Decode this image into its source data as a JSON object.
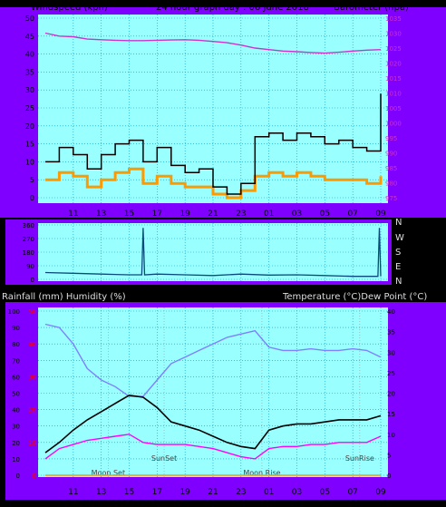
{
  "header": {
    "left": "Windspeed (kph)",
    "center": "24 hour graph day : 06 June 2018",
    "right": "Barometer (hpa)"
  },
  "mid_header": {
    "left": "Rainfall (mm)  Humidity (%)",
    "right": "Temperature (°C)Dew Point (°C)"
  },
  "compass": [
    "N",
    "W",
    "S",
    "E",
    "N"
  ],
  "events": {
    "moon_set": "Moon Set",
    "sunset": "SunSet",
    "moon_rise": "Moon Rise",
    "sunrise": "SunRise"
  },
  "colors": {
    "frame": "#7f00ff",
    "plot_bg": "#99ffff",
    "grid": "#0099cc",
    "wind_gust": "#000000",
    "wind_avg": "#ff9900",
    "barometer": "#cc33cc",
    "direction": "#0a4a7a",
    "humidity": "#8080ff",
    "temperature": "#000000",
    "dewpoint": "#ff00ff"
  },
  "chart_data": [
    {
      "type": "line",
      "name": "wind_barometer",
      "x_ticks": [
        "11",
        "13",
        "15",
        "17",
        "19",
        "21",
        "23",
        "01",
        "03",
        "05",
        "07",
        "09"
      ],
      "y_left_ticks": [
        "0",
        "5",
        "10",
        "15",
        "20",
        "25",
        "30",
        "35",
        "40",
        "45",
        "50"
      ],
      "ylim_left": [
        0,
        50
      ],
      "y_right_ticks": [
        "975",
        "980",
        "985",
        "990",
        "995",
        "1000",
        "1005",
        "1010",
        "1015",
        "1020",
        "1025",
        "1030",
        "1035"
      ],
      "ylim_right": [
        975,
        1035
      ],
      "x_hours": [
        9,
        10,
        11,
        12,
        13,
        14,
        15,
        16,
        17,
        18,
        19,
        20,
        21,
        22,
        23,
        24,
        25,
        26,
        27,
        28,
        29,
        30,
        31,
        32,
        33
      ],
      "series": [
        {
          "key": "gust",
          "axis": "left",
          "values": [
            10,
            14,
            12,
            8,
            12,
            15,
            16,
            10,
            14,
            9,
            7,
            8,
            3,
            1,
            4,
            17,
            18,
            16,
            18,
            17,
            15,
            16,
            14,
            13,
            29
          ]
        },
        {
          "key": "average",
          "axis": "left",
          "values": [
            5,
            7,
            6,
            3,
            5,
            7,
            8,
            4,
            6,
            4,
            3,
            3,
            1,
            0,
            2,
            6,
            7,
            6,
            7,
            6,
            5,
            5,
            5,
            4,
            6
          ]
        },
        {
          "key": "barometer",
          "axis": "right",
          "values": [
            1030,
            1029,
            1028.8,
            1028,
            1027.8,
            1027.6,
            1027.5,
            1027.5,
            1027.6,
            1027.7,
            1027.8,
            1027.6,
            1027.2,
            1026.8,
            1026,
            1025,
            1024.5,
            1024,
            1023.8,
            1023.5,
            1023.3,
            1023.6,
            1024,
            1024.3,
            1024.5
          ]
        }
      ]
    },
    {
      "type": "line",
      "name": "wind_direction",
      "y_ticks": [
        "0",
        "90",
        "180",
        "270",
        "360"
      ],
      "ylim": [
        0,
        360
      ],
      "x_hours": [
        9,
        11,
        13,
        15,
        15.9,
        16,
        16.1,
        17,
        19,
        21,
        23,
        25,
        27,
        29,
        31,
        32.8,
        32.9,
        33
      ],
      "values": [
        45,
        40,
        35,
        30,
        30,
        340,
        30,
        35,
        30,
        25,
        35,
        28,
        30,
        25,
        20,
        20,
        340,
        20
      ]
    },
    {
      "type": "line",
      "name": "rain_humidity_temperature",
      "x_ticks": [
        "11",
        "13",
        "15",
        "17",
        "19",
        "21",
        "23",
        "01",
        "03",
        "05",
        "07",
        "09"
      ],
      "y_left_ticks": [
        "0",
        "10",
        "20",
        "30",
        "40",
        "50",
        "60",
        "70",
        "80",
        "90",
        "100"
      ],
      "ylim_left": [
        0,
        100
      ],
      "y_rain_ticks": [
        "0",
        "10",
        "20",
        "30",
        "40",
        "50"
      ],
      "ylim_rain": [
        0,
        50
      ],
      "y_right_ticks": [
        "0",
        "5",
        "10",
        "15",
        "20",
        "25",
        "30",
        "35",
        "40"
      ],
      "ylim_right": [
        0,
        40
      ],
      "x_hours": [
        9,
        10,
        11,
        12,
        13,
        14,
        15,
        16,
        17,
        18,
        19,
        20,
        21,
        22,
        23,
        24,
        25,
        26,
        27,
        28,
        29,
        30,
        31,
        32,
        33
      ],
      "series": [
        {
          "key": "humidity",
          "axis": "left",
          "values": [
            92,
            90,
            80,
            65,
            58,
            54,
            48,
            48,
            58,
            68,
            72,
            76,
            80,
            84,
            86,
            88,
            78,
            76,
            76,
            77,
            76,
            76,
            77,
            76,
            72
          ]
        },
        {
          "key": "temperature",
          "axis": "right",
          "values": [
            5.5,
            8,
            11,
            13.5,
            15.5,
            17.5,
            19.5,
            19,
            16.5,
            13,
            12,
            11,
            9.5,
            8,
            7,
            6.5,
            11,
            12,
            12.5,
            12.5,
            13,
            13.5,
            13.5,
            13.5,
            14.5
          ]
        },
        {
          "key": "dewpoint",
          "axis": "right",
          "values": [
            4,
            6.5,
            7.5,
            8.5,
            9,
            9.5,
            10,
            8,
            7.5,
            7.5,
            7.5,
            7,
            6.5,
            5.5,
            4.5,
            4,
            6.5,
            7,
            7,
            7.5,
            7.5,
            8,
            8,
            8,
            9.5
          ]
        },
        {
          "key": "rainfall",
          "axis": "rain",
          "values": [
            0,
            0,
            0,
            0,
            0,
            0,
            0,
            0,
            0,
            0,
            0,
            0,
            0,
            0,
            0,
            0,
            0,
            0,
            0,
            0,
            0,
            0,
            0,
            0,
            0
          ]
        }
      ]
    }
  ]
}
